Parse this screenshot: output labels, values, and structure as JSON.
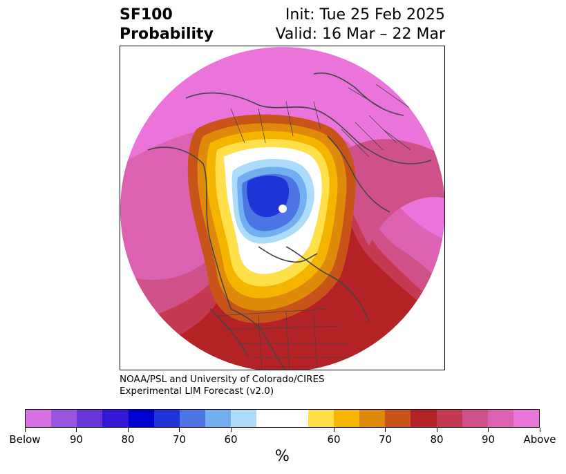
{
  "header": {
    "title_line1": "SF100",
    "title_line2": "Probability",
    "init": "Init: Tue 25 Feb 2025",
    "valid": "Valid: 16 Mar – 22 Mar"
  },
  "credit": {
    "line1": "NOAA/PSL and University of Colorado/CIRES",
    "line2": "Experimental LIM Forecast (v2.0)"
  },
  "colorbar": {
    "colors": [
      "#d670e3",
      "#9a55e0",
      "#6a35d8",
      "#3516d6",
      "#0000d0",
      "#2034d8",
      "#4c74e2",
      "#72aef0",
      "#acdcfa",
      "#ffffff",
      "#ffffff",
      "#ffe04a",
      "#f4b400",
      "#e08a0c",
      "#c8541a",
      "#b32225",
      "#c43a50",
      "#d0508a",
      "#de62b2",
      "#ea74da"
    ],
    "tick_labels": [
      "Below",
      "90",
      "80",
      "70",
      "60",
      "60",
      "70",
      "80",
      "90",
      "Above"
    ],
    "unit": "%"
  }
}
